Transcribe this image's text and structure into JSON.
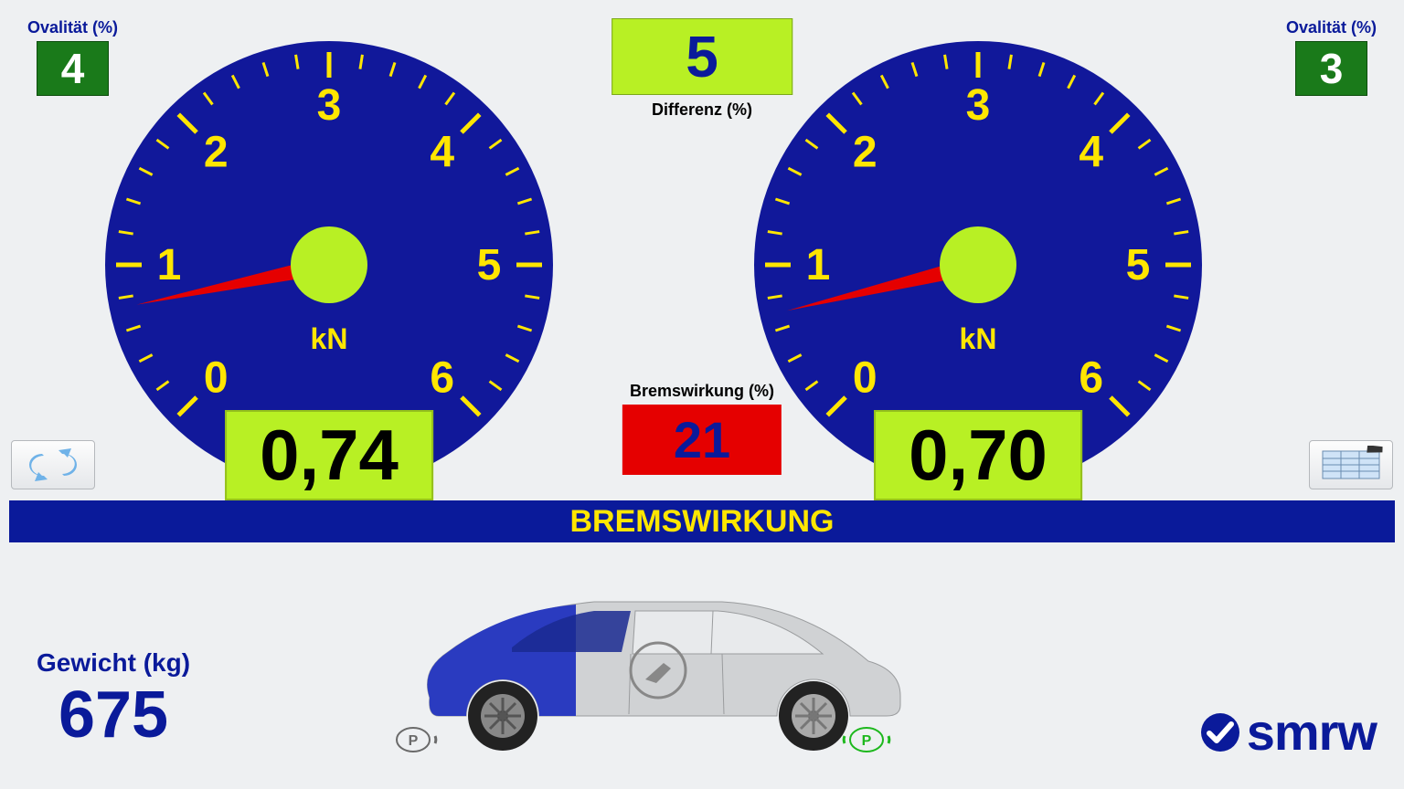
{
  "colors": {
    "background": "#eef0f2",
    "gauge_face": "#11189a",
    "gauge_tick": "#ffe600",
    "gauge_number": "#ffe600",
    "needle": "#e50000",
    "needle_hub": "#b8f024",
    "reading_bg": "#b8f024",
    "reading_text": "#000000",
    "ovality_bg": "#1a7a1a",
    "ovality_text": "#ffffff",
    "diff_bg": "#b8f024",
    "diff_text": "#0a1a9a",
    "brake_bg": "#e50000",
    "brake_text": "#0a1a9a",
    "bar_bg": "#0a1a9a",
    "bar_text": "#ffe600",
    "brand_blue": "#0a1a9a"
  },
  "ovality_left": {
    "label": "Ovalität (%)",
    "value": "4"
  },
  "ovality_right": {
    "label": "Ovalität (%)",
    "value": "3"
  },
  "difference": {
    "label": "Differenz (%)",
    "value": "5"
  },
  "brake_effect": {
    "label": "Bremswirkung (%)",
    "value": "21"
  },
  "gauge": {
    "unit": "kN",
    "min": 0,
    "max": 6,
    "ticks": [
      0,
      1,
      2,
      3,
      4,
      5,
      6
    ],
    "start_angle_deg": -225,
    "end_angle_deg": 45,
    "major_tick_len": 28,
    "minor_tick_len": 16,
    "number_fontsize": 48,
    "unit_fontsize": 32
  },
  "left_gauge": {
    "reading": "0,74",
    "value": 0.74
  },
  "right_gauge": {
    "reading": "0,70",
    "value": 0.7
  },
  "title_bar": "BREMSWIRKUNG",
  "weight": {
    "label": "Gewicht (kg)",
    "value": "675"
  },
  "logo": {
    "text": "smrw"
  },
  "icons": {
    "refresh": "refresh-icon",
    "report": "report-icon"
  },
  "car": {
    "front_color": "#2a3bc0",
    "body_color": "#d0d2d4",
    "wheel_color": "#222222",
    "rim_color": "#888888",
    "p_badge_left_color": "#6a6a6a",
    "p_badge_right_color": "#1db81d"
  }
}
